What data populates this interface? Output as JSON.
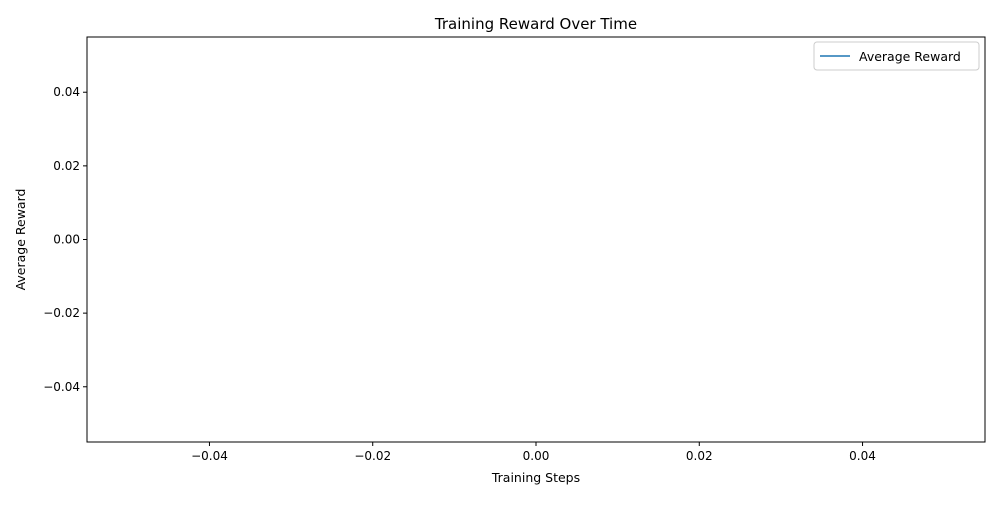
{
  "chart_data": {
    "type": "line",
    "title": "Training Reward Over Time",
    "xlabel": "Training Steps",
    "ylabel": "Average Reward",
    "xlim": [
      -0.055,
      0.055
    ],
    "ylim": [
      -0.055,
      0.055
    ],
    "xticks": [
      -0.04,
      -0.02,
      0.0,
      0.02,
      0.04
    ],
    "xtick_labels": [
      "−0.04",
      "−0.02",
      "0.00",
      "0.02",
      "0.04"
    ],
    "yticks": [
      -0.04,
      -0.02,
      0.0,
      0.02,
      0.04
    ],
    "ytick_labels": [
      "−0.04",
      "−0.02",
      "0.00",
      "0.02",
      "0.04"
    ],
    "grid": false,
    "legend": {
      "placement": "top-right",
      "entries": [
        {
          "label": "Average Reward",
          "color": "#1f77b4"
        }
      ]
    },
    "series": [
      {
        "name": "Average Reward",
        "color": "#1f77b4",
        "x": [],
        "y": []
      }
    ]
  }
}
